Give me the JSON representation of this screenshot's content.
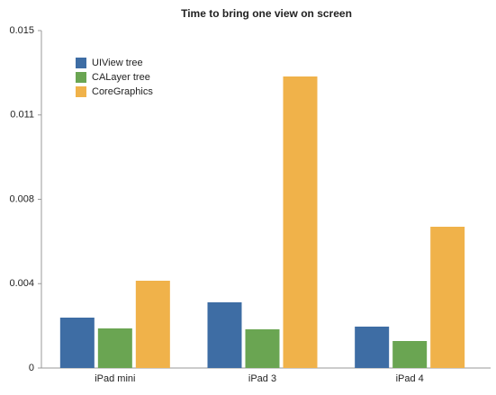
{
  "chart_data": {
    "type": "bar",
    "title": "Time to bring one view on screen",
    "categories": [
      "iPad mini",
      "iPad 3",
      "iPad 4"
    ],
    "series": [
      {
        "name": "UIView tree",
        "color": "#3e6da4",
        "values": [
          0.00224,
          0.00292,
          0.00184
        ]
      },
      {
        "name": "CALayer tree",
        "color": "#6aa552",
        "values": [
          0.00176,
          0.00172,
          0.0012
        ]
      },
      {
        "name": "CoreGraphics",
        "color": "#f0b24a",
        "values": [
          0.00388,
          0.01296,
          0.00628
        ]
      }
    ],
    "ylim": [
      0,
      0.015
    ],
    "yticks": [
      0,
      {
        "value": 0.00375,
        "label": "0.004"
      },
      {
        "value": 0.0075,
        "label": "0.008"
      },
      {
        "value": 0.01125,
        "label": "0.011"
      },
      0.015
    ],
    "grid": false,
    "legend": "top-left"
  }
}
